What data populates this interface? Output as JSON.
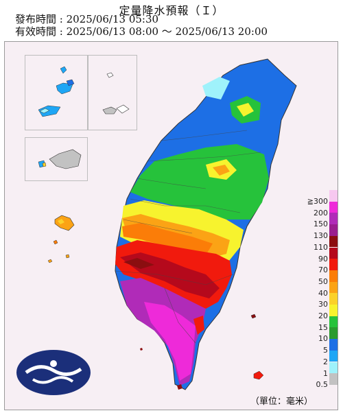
{
  "header": {
    "title": "定量降水預報（Ｉ）",
    "issued": "發布時間 : 2025/06/13 05:30",
    "valid": "有效時間 : 2025/06/13 08:00 ～ 2025/06/13 20:00"
  },
  "legend": {
    "unit": "（單位：毫米）",
    "levels": [
      {
        "label": "≧300",
        "color": "#f7c8f0"
      },
      {
        "label": "200",
        "color": "#ee2ad9"
      },
      {
        "label": "150",
        "color": "#b02bb8"
      },
      {
        "label": "130",
        "color": "#9a1e8e"
      },
      {
        "label": "110",
        "color": "#8b0e10"
      },
      {
        "label": "90",
        "color": "#b5091c"
      },
      {
        "label": "70",
        "color": "#f11a0d"
      },
      {
        "label": "50",
        "color": "#fb7d08"
      },
      {
        "label": "40",
        "color": "#fba315"
      },
      {
        "label": "30",
        "color": "#fbd12a"
      },
      {
        "label": "20",
        "color": "#f7f32e"
      },
      {
        "label": "15",
        "color": "#26c23b"
      },
      {
        "label": "10",
        "color": "#2a9b2f"
      },
      {
        "label": "5",
        "color": "#1d6fe5"
      },
      {
        "label": "2",
        "color": "#1ea6f5"
      },
      {
        "label": "1",
        "color": "#9ff2fb"
      },
      {
        "label": "0.5",
        "color": "#c2c2c2"
      }
    ]
  },
  "logo": {
    "name": "cwa-logo"
  }
}
